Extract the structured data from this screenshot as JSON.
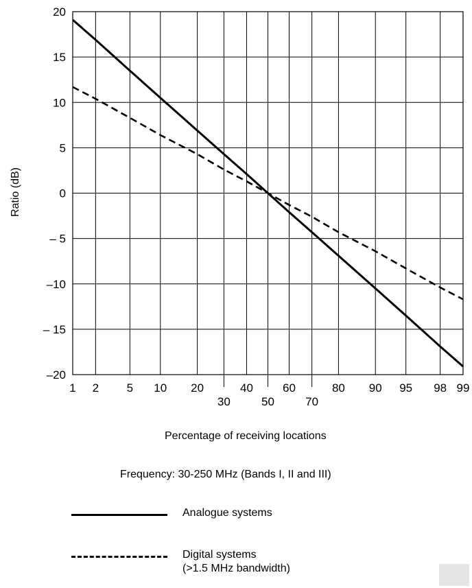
{
  "chart_data": {
    "type": "line",
    "xlabel": "Percentage of receiving locations",
    "ylabel": "Ratio (dB)",
    "x_scale": "normal-probability",
    "xlim": [
      1,
      99
    ],
    "ylim": [
      -20,
      20
    ],
    "grid": true,
    "x_ticks_upper": [
      "1",
      "2",
      "5",
      "10",
      "20",
      "40",
      "60",
      "80",
      "90",
      "95",
      "98",
      "99"
    ],
    "x_ticks_upper_values": [
      1,
      2,
      5,
      10,
      20,
      40,
      60,
      80,
      90,
      95,
      98,
      99
    ],
    "x_ticks_lower": [
      "30",
      "50",
      "70"
    ],
    "x_ticks_lower_values": [
      30,
      50,
      70
    ],
    "y_ticks": [
      "20",
      "15",
      "10",
      "5",
      "0",
      "– 5",
      "–10",
      "– 15",
      "–20"
    ],
    "y_ticks_values": [
      20,
      15,
      10,
      5,
      0,
      -5,
      -10,
      -15,
      -20
    ],
    "series": [
      {
        "name": "Analogue systems",
        "style": "solid",
        "color": "#000000",
        "x": [
          1,
          2,
          5,
          10,
          20,
          30,
          40,
          50,
          60,
          70,
          80,
          90,
          95,
          98,
          99
        ],
        "y": [
          19.1,
          16.9,
          13.5,
          10.5,
          6.9,
          4.3,
          2.1,
          0,
          -2.1,
          -4.3,
          -6.9,
          -10.5,
          -13.5,
          -16.9,
          -19.1
        ]
      },
      {
        "name": "Digital systems\n(>1.5 MHz bandwidth)",
        "style": "dashed",
        "color": "#000000",
        "x": [
          1,
          2,
          5,
          10,
          20,
          30,
          40,
          50,
          60,
          70,
          80,
          90,
          95,
          98,
          99
        ],
        "y": [
          11.7,
          10.4,
          8.3,
          6.4,
          4.3,
          2.6,
          1.3,
          0,
          -1.3,
          -2.6,
          -4.3,
          -6.4,
          -8.3,
          -10.4,
          -11.7
        ]
      }
    ]
  },
  "caption": "Frequency: 30-250 MHz (Bands I, II and III)",
  "legend": [
    {
      "label": "Analogue systems"
    },
    {
      "label_line1": "Digital systems",
      "label_line2": "(>1.5 MHz bandwidth)"
    }
  ]
}
